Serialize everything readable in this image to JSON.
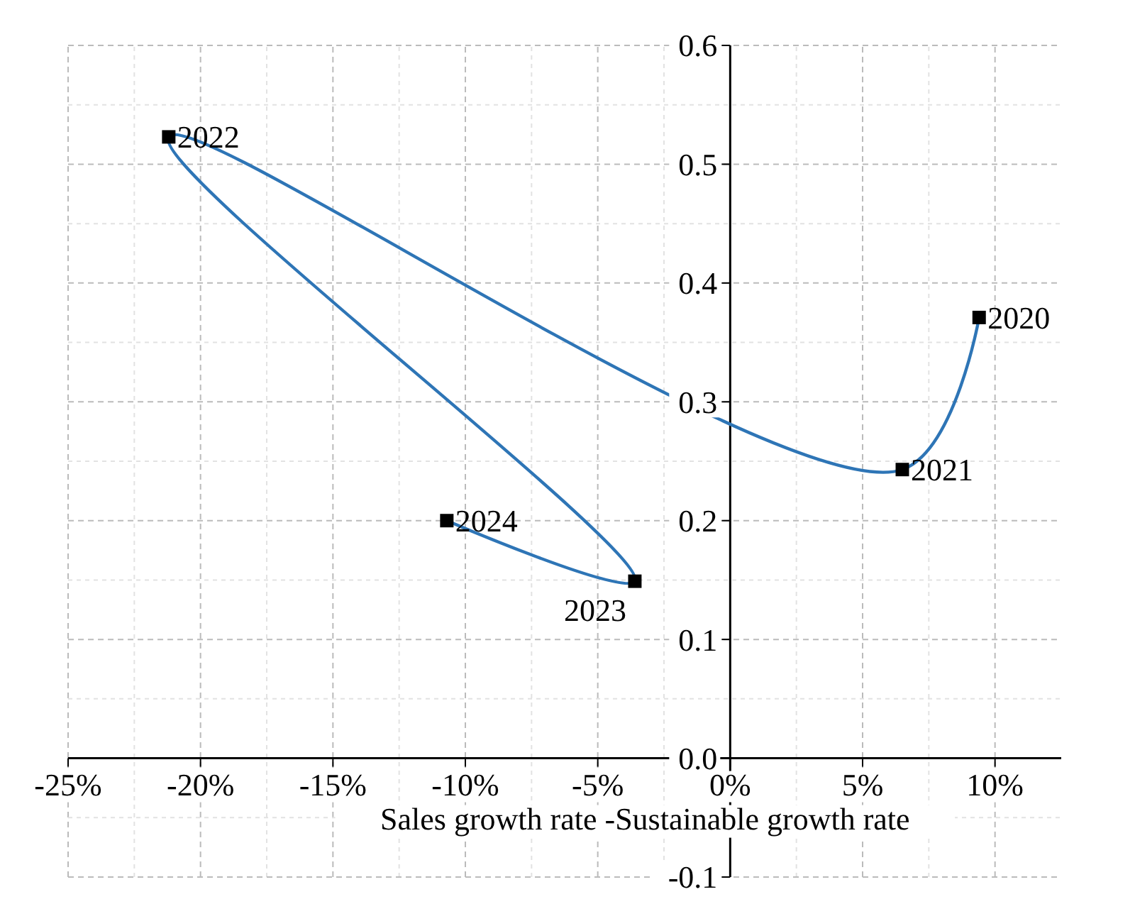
{
  "chart_data": {
    "type": "line",
    "xlabel": "Sales growth rate -Sustainable growth rate",
    "x": [
      9.4,
      6.5,
      -21.2,
      -3.6,
      -10.7
    ],
    "series": [
      {
        "color": "#2e75b6",
        "values": [
          0.371,
          0.243,
          0.523,
          0.149,
          0.2
        ]
      }
    ],
    "marker": "square",
    "grid": true,
    "xlim": [
      -25,
      12.5
    ],
    "ylim": [
      -0.1,
      0.6
    ],
    "xticks": [
      {
        "value": -25,
        "label": "-25%"
      },
      {
        "value": -20,
        "label": "-20%"
      },
      {
        "value": -15,
        "label": "-15%"
      },
      {
        "value": -10,
        "label": "-10%"
      },
      {
        "value": -5,
        "label": "-5%"
      },
      {
        "value": 0,
        "label": "0%"
      },
      {
        "value": 5,
        "label": "5%"
      },
      {
        "value": 10,
        "label": "10%"
      }
    ],
    "yticks": [
      {
        "value": -0.1,
        "label": "-0.1"
      },
      {
        "value": 0,
        "label": "0.0"
      },
      {
        "value": 0.1,
        "label": "0.1"
      },
      {
        "value": 0.2,
        "label": "0.2"
      },
      {
        "value": 0.3,
        "label": "0.3"
      },
      {
        "value": 0.4,
        "label": "0.4"
      },
      {
        "value": 0.5,
        "label": "0.5"
      },
      {
        "value": 0.6,
        "label": "0.6"
      }
    ],
    "annotations": [
      {
        "text": "2020",
        "x": 9.4,
        "y": 0.371
      },
      {
        "text": "2021",
        "x": 6.5,
        "y": 0.243
      },
      {
        "text": "2022",
        "x": -21.2,
        "y": 0.523
      },
      {
        "text": "2023",
        "x": -3.6,
        "y": 0.149
      },
      {
        "text": "2024",
        "x": -10.7,
        "y": 0.2
      }
    ]
  }
}
